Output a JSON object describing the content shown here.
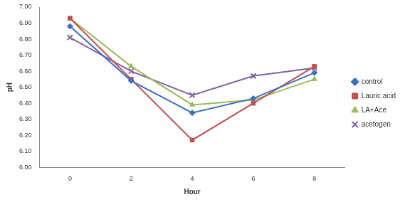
{
  "chart_data": {
    "type": "line",
    "x_label": "Hour",
    "y_label": "pH",
    "categories": [
      "0",
      "2",
      "4",
      "6",
      "8"
    ],
    "series": [
      {
        "name": "control",
        "color": "#3f6fc0",
        "marker": "diamond",
        "values": [
          6.88,
          6.54,
          6.34,
          6.43,
          6.59
        ]
      },
      {
        "name": "Lauric acid",
        "color": "#c0504d",
        "marker": "square",
        "values": [
          6.93,
          6.55,
          6.17,
          6.4,
          6.63
        ]
      },
      {
        "name": "LA+Ace",
        "color": "#9bbb59",
        "marker": "triangle",
        "values": [
          6.93,
          6.63,
          6.39,
          6.42,
          6.55
        ]
      },
      {
        "name": "acetogen",
        "color": "#8064a2",
        "marker": "x",
        "values": [
          6.81,
          6.6,
          6.45,
          6.57,
          6.62
        ]
      }
    ],
    "ylim": [
      6.0,
      7.0
    ],
    "yticks": [
      {
        "value": 6.0,
        "label": "6.00"
      },
      {
        "value": 6.1,
        "label": "6.10"
      },
      {
        "value": 6.2,
        "label": "6.20"
      },
      {
        "value": 6.3,
        "label": "6.30"
      },
      {
        "value": 6.4,
        "label": "6.40"
      },
      {
        "value": 6.5,
        "label": "6.50"
      },
      {
        "value": 6.6,
        "label": "6.60"
      },
      {
        "value": 6.7,
        "label": "6.70"
      },
      {
        "value": 6.8,
        "label": "6.80"
      },
      {
        "value": 6.9,
        "label": "6.90"
      },
      {
        "value": 7.0,
        "label": "7.00"
      }
    ],
    "grid": false,
    "legend": "right"
  }
}
